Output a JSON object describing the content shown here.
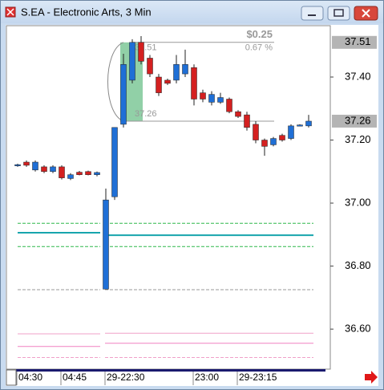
{
  "window": {
    "title": "S.EA - Electronic Arts, 3 Min"
  },
  "chart_data": {
    "type": "candlestick",
    "categories": [
      "04:30",
      null,
      null,
      null,
      null,
      "04:45",
      null,
      null,
      null,
      null,
      "29-22:30",
      null,
      null,
      null,
      null,
      null,
      null,
      null,
      null,
      null,
      "23:00",
      null,
      null,
      null,
      null,
      "29-23:15",
      null,
      null,
      null,
      null,
      null,
      null,
      null,
      null
    ],
    "open": [
      37.12,
      37.13,
      37.105,
      37.115,
      37.1,
      37.115,
      37.078,
      37.098,
      37.1,
      37.09,
      36.727,
      37.02,
      37.25,
      37.39,
      37.51,
      37.46,
      37.4,
      37.39,
      37.39,
      37.41,
      37.43,
      37.35,
      37.32,
      37.32,
      37.33,
      37.29,
      37.28,
      37.25,
      37.2,
      37.185,
      37.215,
      37.205,
      37.247,
      37.245
    ],
    "high": [
      37.125,
      37.135,
      37.135,
      37.12,
      37.12,
      37.12,
      37.095,
      37.102,
      37.103,
      37.1,
      37.046,
      37.24,
      37.474,
      37.52,
      37.53,
      37.47,
      37.41,
      37.395,
      37.47,
      37.487,
      37.44,
      37.36,
      37.355,
      37.35,
      37.335,
      37.295,
      37.29,
      37.26,
      37.205,
      37.21,
      37.22,
      37.25,
      37.25,
      37.28
    ],
    "low": [
      37.115,
      37.115,
      37.1,
      37.095,
      37.095,
      37.075,
      37.073,
      37.088,
      37.088,
      37.085,
      36.727,
      37.01,
      37.24,
      37.38,
      37.44,
      37.4,
      37.34,
      37.375,
      37.38,
      37.4,
      37.31,
      37.32,
      37.31,
      37.315,
      37.285,
      37.27,
      37.23,
      37.19,
      37.15,
      37.18,
      37.195,
      37.2,
      37.245,
      37.24
    ],
    "close": [
      37.122,
      37.12,
      37.13,
      37.1,
      37.115,
      37.08,
      37.09,
      37.09,
      37.09,
      37.097,
      37.01,
      37.24,
      37.44,
      37.51,
      37.45,
      37.41,
      37.35,
      37.38,
      37.44,
      37.44,
      37.33,
      37.33,
      37.345,
      37.335,
      37.29,
      37.275,
      37.24,
      37.2,
      37.18,
      37.205,
      37.2,
      37.245,
      37.248,
      37.26
    ],
    "up_color": "#1f6fd6",
    "down_color": "#d42020",
    "ylim": [
      36.473,
      37.563
    ],
    "yticks": [
      {
        "value": 36.6,
        "label": "36.60"
      },
      {
        "value": 36.8,
        "label": "36.80"
      },
      {
        "value": 37.0,
        "label": "37.00"
      },
      {
        "value": 37.2,
        "label": "37.20"
      },
      {
        "value": 37.4,
        "label": "37.40"
      }
    ],
    "highlight_labels": [
      37.51,
      37.26
    ],
    "measure": {
      "high": 37.51,
      "low": 37.26,
      "high_label": "37.51",
      "low_label": "37.26",
      "change_label": "$0.25",
      "percent_label": "0.67 %"
    },
    "overlays": [
      {
        "color": "#2fb84c",
        "dash": true,
        "values": [
          36.936,
          36.936
        ]
      },
      {
        "color": "#2fb84c",
        "dash": true,
        "values": [
          36.862,
          36.862
        ]
      },
      {
        "color": "#17a5ad",
        "dash": false,
        "values": [
          36.906,
          36.898
        ]
      },
      {
        "color": "#999999",
        "dash": true,
        "values": [
          36.725,
          36.725
        ]
      },
      {
        "color": "#f0a0c8",
        "dash": false,
        "values": [
          36.585,
          36.587
        ]
      },
      {
        "color": "#f080c0",
        "dash": false,
        "values": [
          36.545,
          36.555
        ]
      },
      {
        "color": "#f0a0c8",
        "dash": true,
        "values": [
          36.51,
          36.51
        ]
      }
    ]
  }
}
